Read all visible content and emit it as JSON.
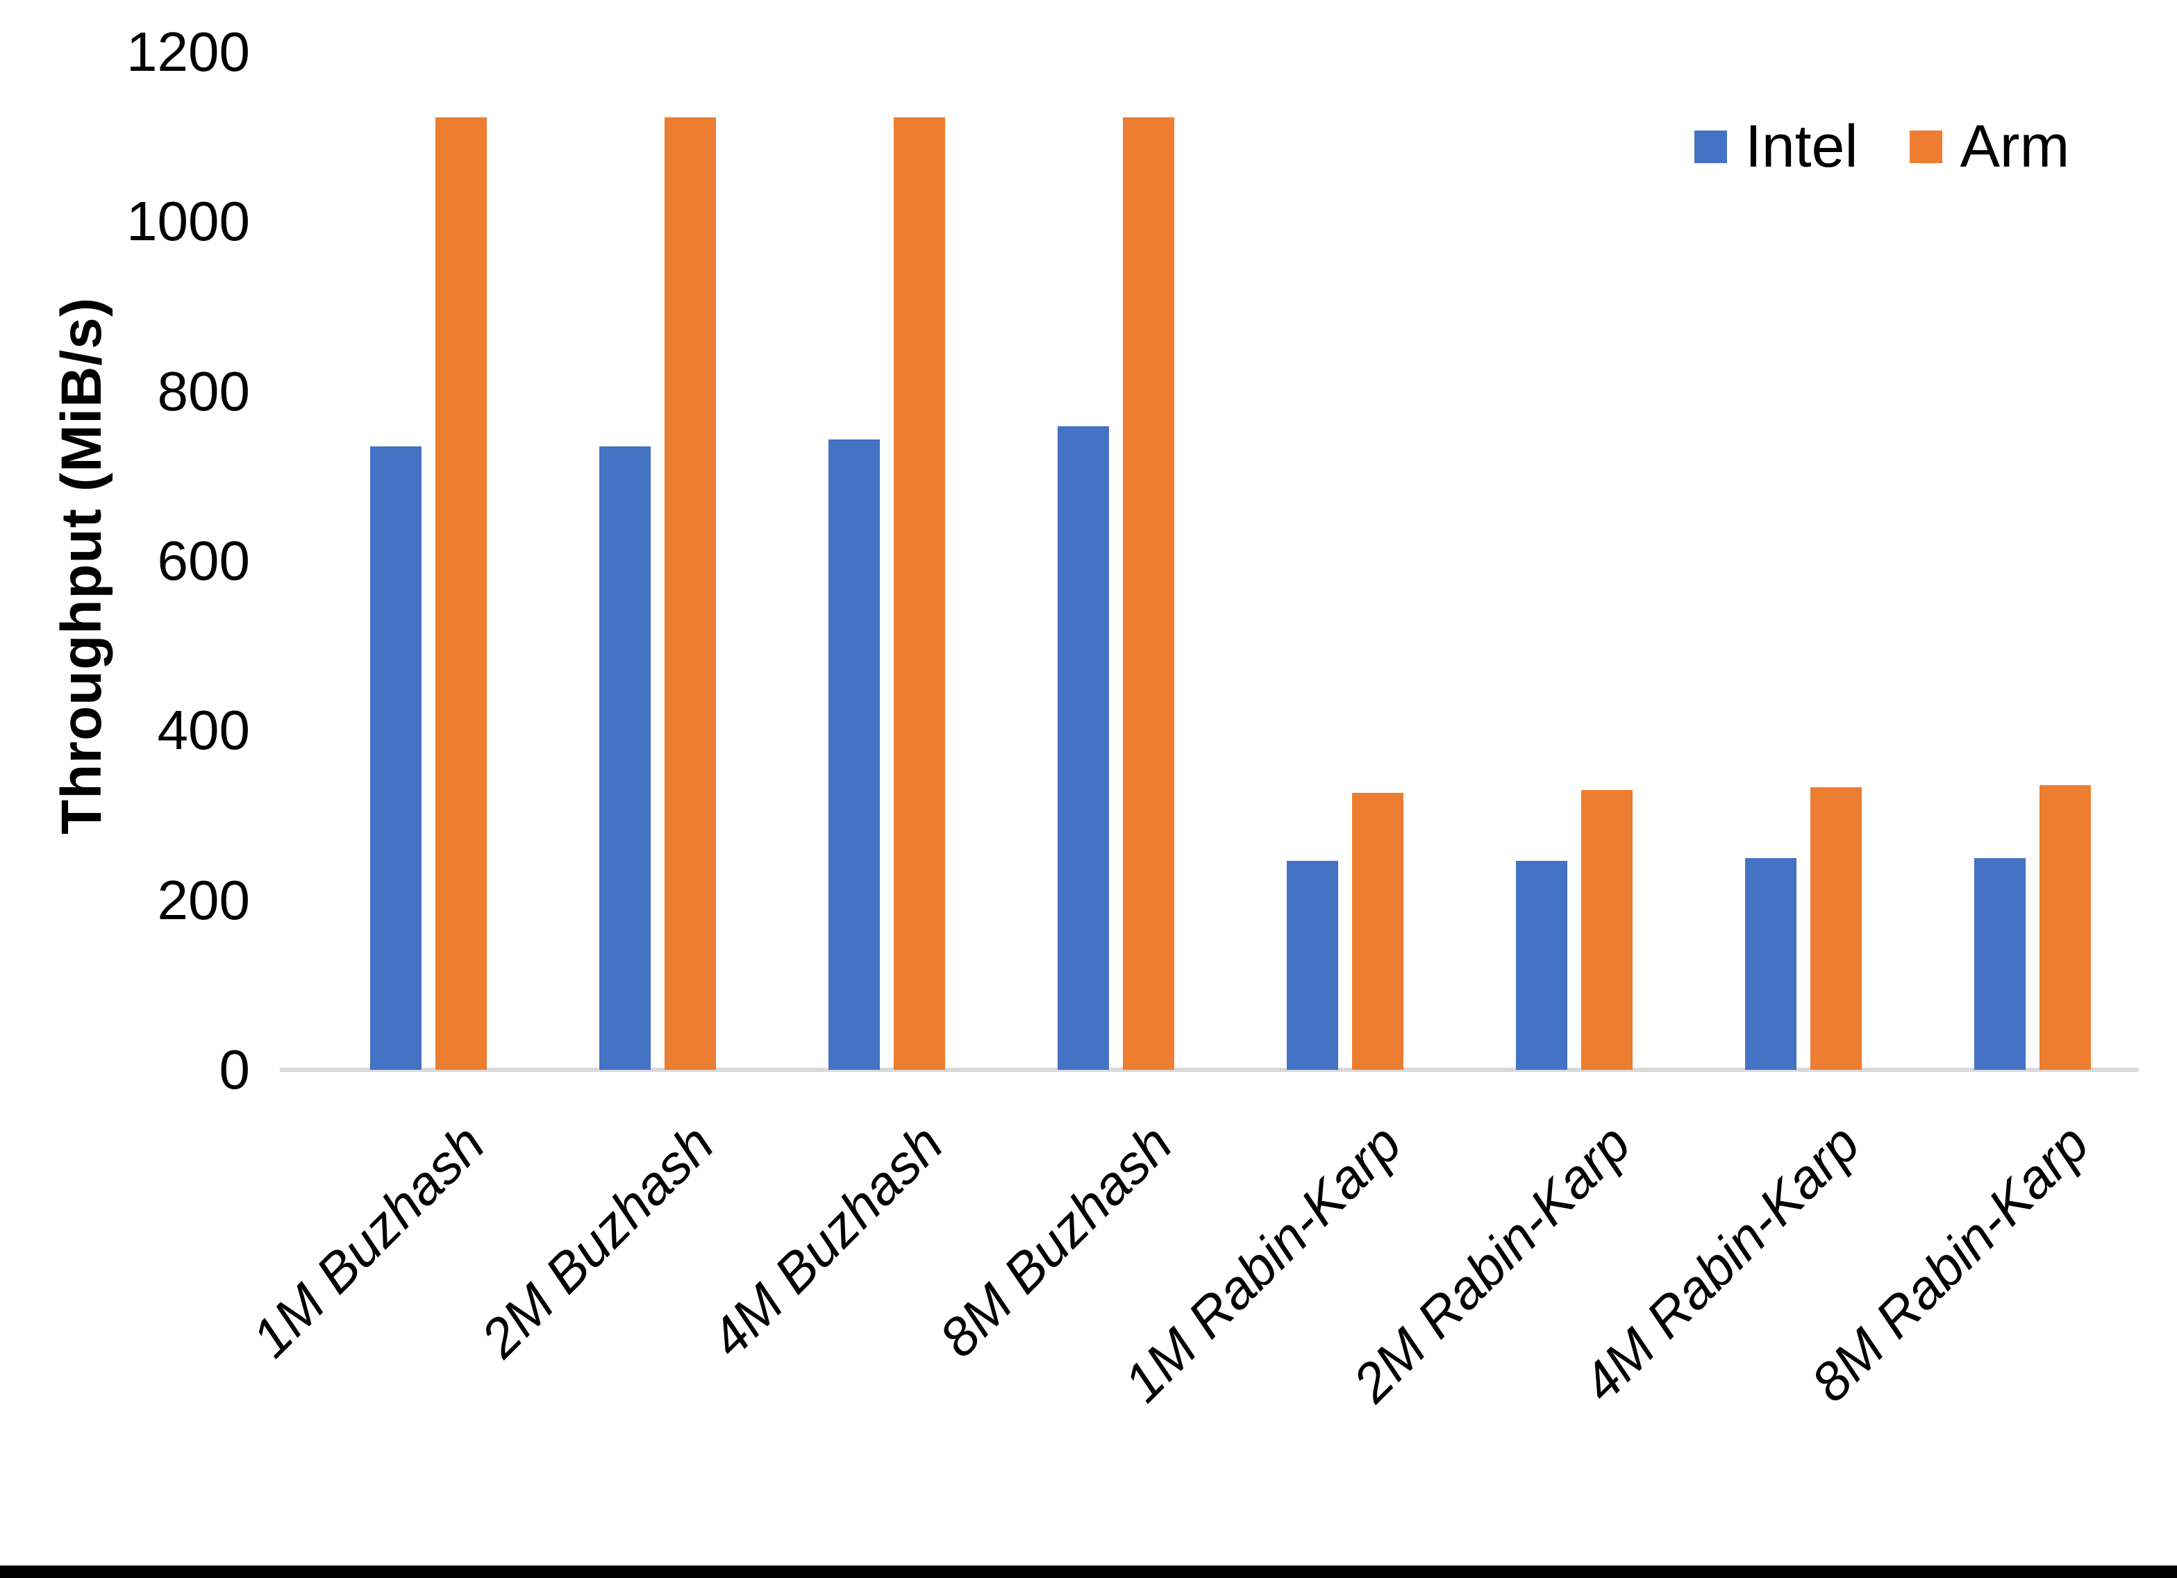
{
  "chart_data": {
    "type": "bar",
    "title": "",
    "xlabel": "",
    "ylabel": "Throughput (MiB/s)",
    "ylim": [
      0,
      1200
    ],
    "yticks": [
      0,
      200,
      400,
      600,
      800,
      1000,
      1200
    ],
    "grid": false,
    "legend_position": "top-right",
    "categories": [
      "1M Buzhash",
      "2M Buzhash",
      "4M Buzhash",
      "8M Buzhash",
      "1M Rabin-Karp",
      "2M Rabin-Karp",
      "4M Rabin-Karp",
      "8M Rabin-Karp"
    ],
    "series": [
      {
        "name": "Intel",
        "color": "#4472C4",
        "values": [
          735,
          735,
          743,
          759,
          246,
          246,
          250,
          250
        ]
      },
      {
        "name": "Arm",
        "color": "#ED7D31",
        "values": [
          1123,
          1123,
          1123,
          1123,
          327,
          330,
          333,
          336
        ]
      }
    ],
    "axis_line_color": "#D9D9D9",
    "background_color": "#FFFFFF",
    "bottom_border_color": "#000000",
    "text_color": "#000000"
  }
}
